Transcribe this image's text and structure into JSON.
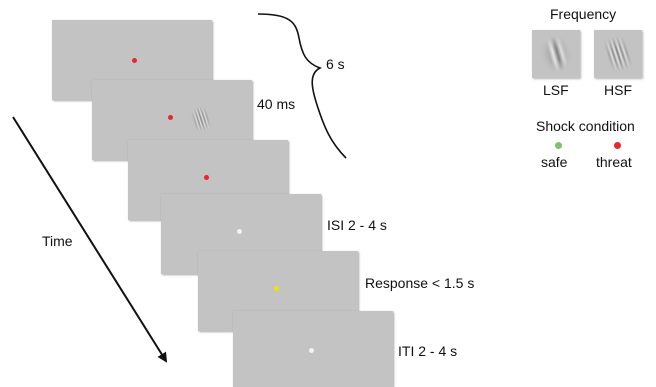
{
  "timeline": {
    "time_label": "Time",
    "stages": [
      {
        "label": "",
        "dot_color": "#e8262c"
      },
      {
        "label": "40 ms",
        "dot_color": "#e8262c",
        "has_grating": true
      },
      {
        "label": "",
        "dot_color": "#e8262c"
      },
      {
        "label": "ISI 2 - 4 s",
        "dot_color": "#f2f2f2"
      },
      {
        "label": "Response < 1.5 s",
        "dot_color": "#f2e100"
      },
      {
        "label": "ITI 2 - 4 s",
        "dot_color": "#f2f2f2"
      }
    ],
    "brace_label": "6 s"
  },
  "legend": {
    "frequency_title": "Frequency",
    "lsf_label": "LSF",
    "hsf_label": "HSF",
    "shock_title": "Shock condition",
    "safe_label": "safe",
    "threat_label": "threat",
    "safe_color": "#79c36b",
    "threat_color": "#e8262c"
  }
}
